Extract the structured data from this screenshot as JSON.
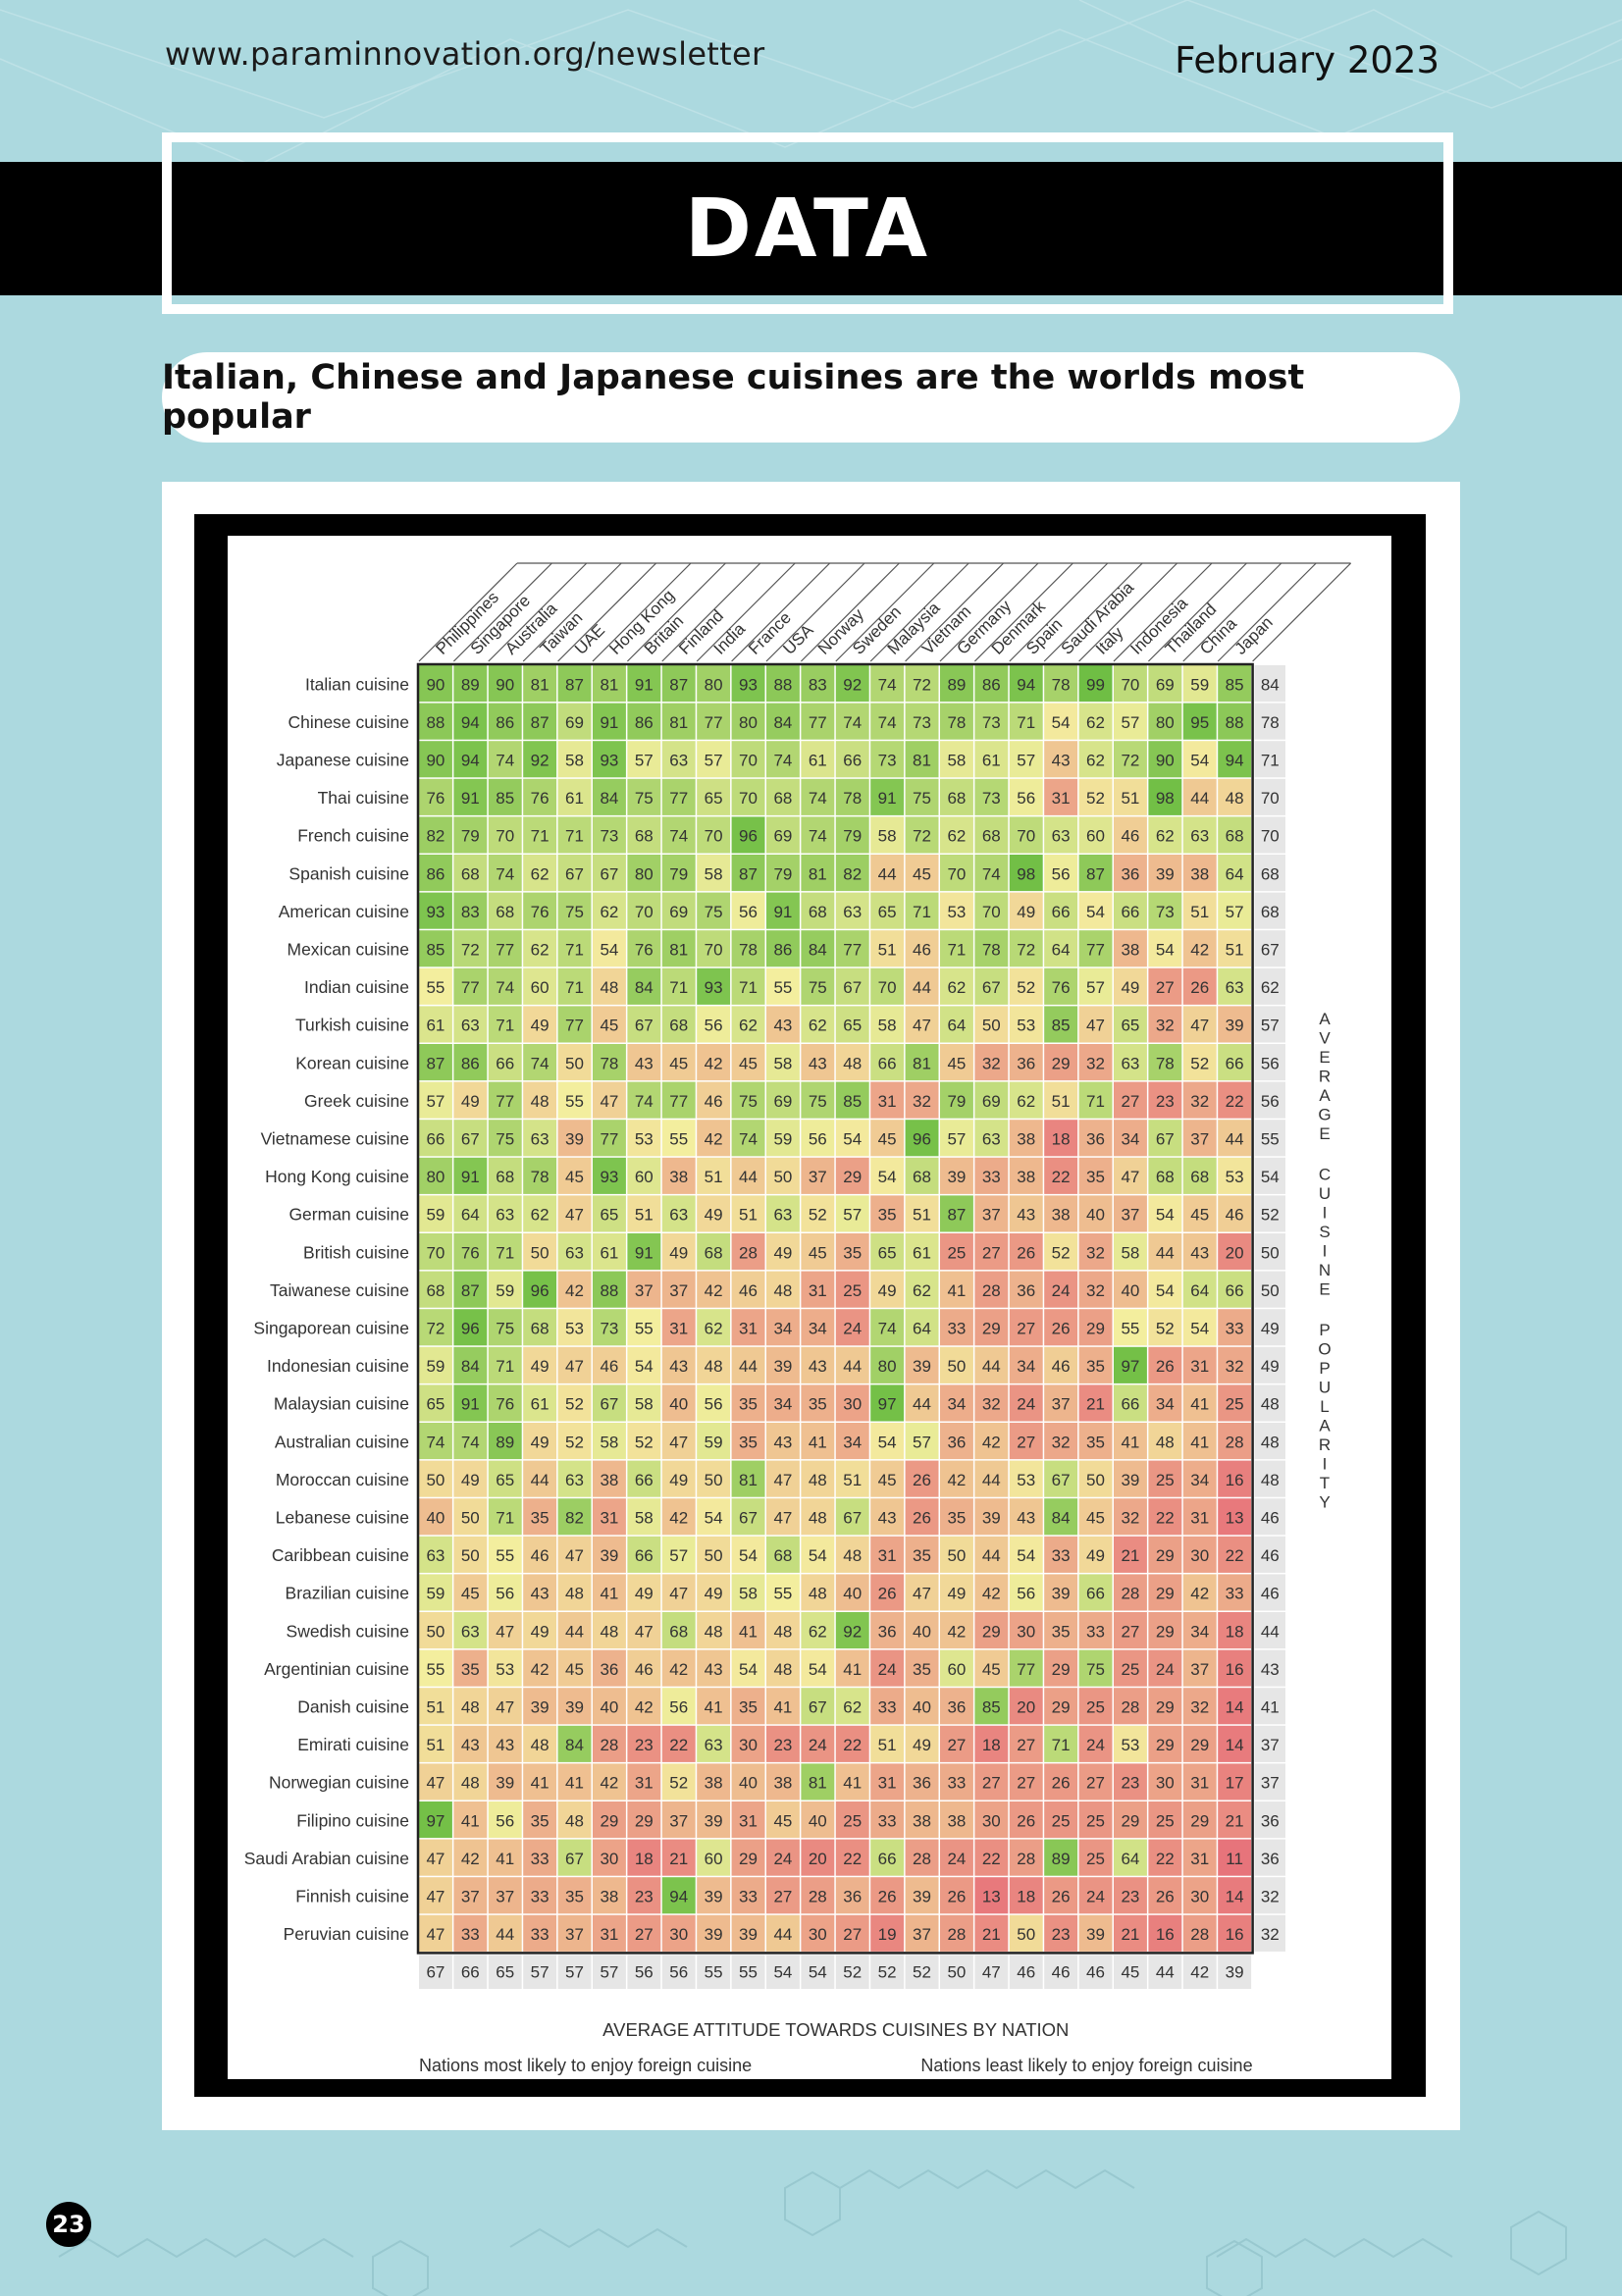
{
  "header": {
    "url": "www.paraminnovation.org/newsletter",
    "date": "February 2023"
  },
  "banner": {
    "title": "DATA"
  },
  "subtitle": "Italian, Chinese and Japanese cuisines are the worlds most popular",
  "footer": {
    "page_number": "23"
  },
  "colors": {
    "page_bg": "#acd9df",
    "banner_bg": "#000000",
    "high": "#6fbe44",
    "mid": "#f3ee9e",
    "low": "#e7727a"
  },
  "chart_data": {
    "type": "heatmap",
    "title": "",
    "xlabel": "AVERAGE ATTITUDE TOWARDS CUISINES BY NATION",
    "ylabel": "AVERAGE CUISINE POPULARITY",
    "footnote_left": "Nations most likely to enjoy foreign cuisine",
    "footnote_right": "Nations least likely to enjoy foreign cuisine",
    "nations": [
      "Philippines",
      "Singapore",
      "Australia",
      "Taiwan",
      "UAE",
      "Hong Kong",
      "Britain",
      "Finland",
      "India",
      "France",
      "USA",
      "Norway",
      "Sweden",
      "Malaysia",
      "Vietnam",
      "Germany",
      "Denmark",
      "Spain",
      "Saudi Arabia",
      "Italy",
      "Indonesia",
      "Thailand",
      "China",
      "Japan"
    ],
    "cuisines": [
      "Italian cuisine",
      "Chinese cuisine",
      "Japanese cuisine",
      "Thai cuisine",
      "French cuisine",
      "Spanish cuisine",
      "American cuisine",
      "Mexican cuisine",
      "Indian cuisine",
      "Turkish cuisine",
      "Korean cuisine",
      "Greek cuisine",
      "Vietnamese cuisine",
      "Hong Kong cuisine",
      "German cuisine",
      "British cuisine",
      "Taiwanese cuisine",
      "Singaporean cuisine",
      "Indonesian cuisine",
      "Malaysian cuisine",
      "Australian cuisine",
      "Moroccan cuisine",
      "Lebanese cuisine",
      "Caribbean cuisine",
      "Brazilian cuisine",
      "Swedish cuisine",
      "Argentinian cuisine",
      "Danish cuisine",
      "Emirati cuisine",
      "Norwegian cuisine",
      "Filipino cuisine",
      "Saudi Arabian cuisine",
      "Finnish cuisine",
      "Peruvian cuisine"
    ],
    "values": [
      [
        90,
        89,
        90,
        81,
        87,
        81,
        91,
        87,
        80,
        93,
        88,
        83,
        92,
        74,
        72,
        89,
        86,
        94,
        78,
        99,
        70,
        69,
        59,
        85
      ],
      [
        88,
        94,
        86,
        87,
        69,
        91,
        86,
        81,
        77,
        80,
        84,
        77,
        74,
        74,
        73,
        78,
        73,
        71,
        54,
        62,
        57,
        80,
        95,
        88
      ],
      [
        90,
        94,
        74,
        92,
        58,
        93,
        57,
        63,
        57,
        70,
        74,
        61,
        66,
        73,
        81,
        58,
        61,
        57,
        43,
        62,
        72,
        90,
        54,
        94
      ],
      [
        76,
        91,
        85,
        76,
        61,
        84,
        75,
        77,
        65,
        70,
        68,
        74,
        78,
        91,
        75,
        68,
        73,
        56,
        31,
        52,
        51,
        98,
        44,
        48
      ],
      [
        82,
        79,
        70,
        71,
        71,
        73,
        68,
        74,
        70,
        96,
        69,
        74,
        79,
        58,
        72,
        62,
        68,
        70,
        63,
        60,
        46,
        62,
        63,
        68
      ],
      [
        86,
        68,
        74,
        62,
        67,
        67,
        80,
        79,
        58,
        87,
        79,
        81,
        82,
        44,
        45,
        70,
        74,
        98,
        56,
        87,
        36,
        39,
        38,
        64
      ],
      [
        93,
        83,
        68,
        76,
        75,
        62,
        70,
        69,
        75,
        56,
        91,
        68,
        63,
        65,
        71,
        53,
        70,
        49,
        66,
        54,
        66,
        73,
        51,
        57
      ],
      [
        85,
        72,
        77,
        62,
        71,
        54,
        76,
        81,
        70,
        78,
        86,
        84,
        77,
        51,
        46,
        71,
        78,
        72,
        64,
        77,
        38,
        54,
        42,
        51
      ],
      [
        55,
        77,
        74,
        60,
        71,
        48,
        84,
        71,
        93,
        71,
        55,
        75,
        67,
        70,
        44,
        62,
        67,
        52,
        76,
        57,
        49,
        27,
        26,
        63
      ],
      [
        61,
        63,
        71,
        49,
        77,
        45,
        67,
        68,
        56,
        62,
        43,
        62,
        65,
        58,
        47,
        64,
        50,
        53,
        85,
        47,
        65,
        32,
        47,
        39
      ],
      [
        87,
        86,
        66,
        74,
        50,
        78,
        43,
        45,
        42,
        45,
        58,
        43,
        48,
        66,
        81,
        45,
        32,
        36,
        29,
        32,
        63,
        78,
        52,
        66
      ],
      [
        57,
        49,
        77,
        48,
        55,
        47,
        74,
        77,
        46,
        75,
        69,
        75,
        85,
        31,
        32,
        79,
        69,
        62,
        51,
        71,
        27,
        23,
        32,
        22
      ],
      [
        66,
        67,
        75,
        63,
        39,
        77,
        53,
        55,
        42,
        74,
        59,
        56,
        54,
        45,
        96,
        57,
        63,
        38,
        18,
        36,
        34,
        67,
        37,
        44
      ],
      [
        80,
        91,
        68,
        78,
        45,
        93,
        60,
        38,
        51,
        44,
        50,
        37,
        29,
        54,
        68,
        39,
        33,
        38,
        22,
        35,
        47,
        68,
        68,
        53
      ],
      [
        59,
        64,
        63,
        62,
        47,
        65,
        51,
        63,
        49,
        51,
        63,
        52,
        57,
        35,
        51,
        87,
        37,
        43,
        38,
        40,
        37,
        54,
        45,
        46
      ],
      [
        70,
        76,
        71,
        50,
        63,
        61,
        91,
        49,
        68,
        28,
        49,
        45,
        35,
        65,
        61,
        25,
        27,
        26,
        52,
        32,
        58,
        44,
        43,
        20
      ],
      [
        68,
        87,
        59,
        96,
        42,
        88,
        37,
        37,
        42,
        46,
        48,
        31,
        25,
        49,
        62,
        41,
        28,
        36,
        24,
        32,
        40,
        54,
        64,
        66
      ],
      [
        72,
        96,
        75,
        68,
        53,
        73,
        55,
        31,
        62,
        31,
        34,
        34,
        24,
        74,
        64,
        33,
        29,
        27,
        26,
        29,
        55,
        52,
        54,
        33
      ],
      [
        59,
        84,
        71,
        49,
        47,
        46,
        54,
        43,
        48,
        44,
        39,
        43,
        44,
        80,
        39,
        50,
        44,
        34,
        46,
        35,
        97,
        26,
        31,
        32
      ],
      [
        65,
        91,
        76,
        61,
        52,
        67,
        58,
        40,
        56,
        35,
        34,
        35,
        30,
        97,
        44,
        34,
        32,
        24,
        37,
        21,
        66,
        34,
        41,
        25
      ],
      [
        74,
        74,
        89,
        49,
        52,
        58,
        52,
        47,
        59,
        35,
        43,
        41,
        34,
        54,
        57,
        36,
        42,
        27,
        32,
        35,
        41,
        48,
        41,
        28
      ],
      [
        50,
        49,
        65,
        44,
        63,
        38,
        66,
        49,
        50,
        81,
        47,
        48,
        51,
        45,
        26,
        42,
        44,
        53,
        67,
        50,
        39,
        25,
        34,
        16
      ],
      [
        40,
        50,
        71,
        35,
        82,
        31,
        58,
        42,
        54,
        67,
        47,
        48,
        67,
        43,
        26,
        35,
        39,
        43,
        84,
        45,
        32,
        22,
        31,
        13
      ],
      [
        63,
        50,
        55,
        46,
        47,
        39,
        66,
        57,
        50,
        54,
        68,
        54,
        48,
        31,
        35,
        50,
        44,
        54,
        33,
        49,
        21,
        29,
        30,
        22
      ],
      [
        59,
        45,
        56,
        43,
        48,
        41,
        49,
        47,
        49,
        58,
        55,
        48,
        40,
        26,
        47,
        49,
        42,
        56,
        39,
        66,
        28,
        29,
        42,
        33
      ],
      [
        50,
        63,
        47,
        49,
        44,
        48,
        47,
        68,
        48,
        41,
        48,
        62,
        92,
        36,
        40,
        42,
        29,
        30,
        35,
        33,
        27,
        29,
        34,
        18
      ],
      [
        55,
        35,
        53,
        42,
        45,
        36,
        46,
        42,
        43,
        54,
        48,
        54,
        41,
        24,
        35,
        60,
        45,
        77,
        29,
        75,
        25,
        24,
        37,
        16
      ],
      [
        51,
        48,
        47,
        39,
        39,
        40,
        42,
        56,
        41,
        35,
        41,
        67,
        62,
        33,
        40,
        36,
        85,
        20,
        29,
        25,
        28,
        29,
        32,
        14
      ],
      [
        51,
        43,
        43,
        48,
        84,
        28,
        23,
        22,
        63,
        30,
        23,
        24,
        22,
        51,
        49,
        27,
        18,
        27,
        71,
        24,
        53,
        29,
        29,
        14
      ],
      [
        47,
        48,
        39,
        41,
        41,
        42,
        31,
        52,
        38,
        40,
        38,
        81,
        41,
        31,
        36,
        33,
        27,
        27,
        26,
        27,
        23,
        30,
        31,
        17
      ],
      [
        97,
        41,
        56,
        35,
        48,
        29,
        29,
        37,
        39,
        31,
        45,
        40,
        25,
        33,
        38,
        38,
        30,
        26,
        25,
        25,
        29,
        25,
        29,
        21
      ],
      [
        47,
        42,
        41,
        33,
        67,
        30,
        18,
        21,
        60,
        29,
        24,
        20,
        22,
        66,
        28,
        24,
        22,
        28,
        89,
        25,
        64,
        22,
        31,
        11
      ],
      [
        47,
        37,
        37,
        33,
        35,
        38,
        23,
        94,
        39,
        33,
        27,
        28,
        36,
        26,
        39,
        26,
        13,
        18,
        26,
        24,
        23,
        26,
        30,
        14
      ],
      [
        47,
        33,
        44,
        33,
        37,
        31,
        27,
        30,
        39,
        39,
        44,
        30,
        27,
        19,
        37,
        28,
        21,
        50,
        23,
        39,
        21,
        16,
        28,
        16
      ]
    ],
    "row_averages": [
      84,
      78,
      71,
      70,
      70,
      68,
      68,
      67,
      62,
      57,
      56,
      56,
      55,
      54,
      52,
      50,
      50,
      49,
      49,
      48,
      48,
      48,
      46,
      46,
      46,
      44,
      43,
      41,
      37,
      37,
      36,
      36,
      32,
      32
    ],
    "column_averages": [
      67,
      66,
      65,
      57,
      57,
      57,
      56,
      56,
      55,
      55,
      54,
      54,
      52,
      52,
      52,
      50,
      47,
      46,
      46,
      46,
      45,
      44,
      42,
      39
    ],
    "color_scale": {
      "low": 10,
      "mid": 55,
      "high": 99
    }
  }
}
